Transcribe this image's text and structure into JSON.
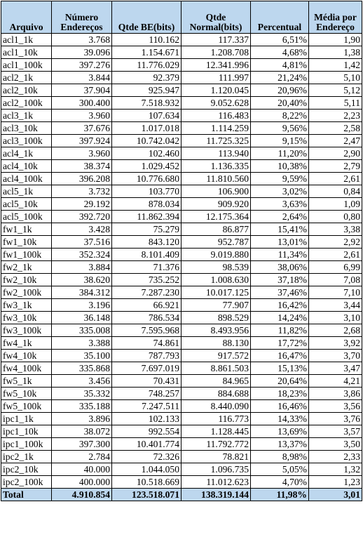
{
  "header": {
    "arquivo": "Arquivo",
    "numero_enderecos": "Número Endereços",
    "qtde_be": "Qtde BE(bits)",
    "qtde_normal": "Qtde Normal(bits)",
    "percentual": "Percentual",
    "media": "Média por Endereço"
  },
  "rows": [
    [
      "acl1_1k",
      "3.768",
      "110.162",
      "117.337",
      "6,51%",
      "1,90"
    ],
    [
      "acl1_10k",
      "39.096",
      "1.154.671",
      "1.208.708",
      "4,68%",
      "1,38"
    ],
    [
      "acl1_100k",
      "397.276",
      "11.776.029",
      "12.341.996",
      "4,81%",
      "1,42"
    ],
    [
      "acl2_1k",
      "3.844",
      "92.379",
      "111.997",
      "21,24%",
      "5,10"
    ],
    [
      "acl2_10k",
      "37.904",
      "925.947",
      "1.120.045",
      "20,96%",
      "5,12"
    ],
    [
      "acl2_100k",
      "300.400",
      "7.518.932",
      "9.052.628",
      "20,40%",
      "5,11"
    ],
    [
      "acl3_1k",
      "3.960",
      "107.634",
      "116.483",
      "8,22%",
      "2,23"
    ],
    [
      "acl3_10k",
      "37.676",
      "1.017.018",
      "1.114.259",
      "9,56%",
      "2,58"
    ],
    [
      "acl3_100k",
      "397.924",
      "10.742.042",
      "11.725.325",
      "9,15%",
      "2,47"
    ],
    [
      "acl4_1k",
      "3.960",
      "102.460",
      "113.940",
      "11,20%",
      "2,90"
    ],
    [
      "acl4_10k",
      "38.374",
      "1.029.452",
      "1.136.335",
      "10,38%",
      "2,79"
    ],
    [
      "acl4_100k",
      "396.208",
      "10.776.680",
      "11.810.560",
      "9,59%",
      "2,61"
    ],
    [
      "acl5_1k",
      "3.732",
      "103.770",
      "106.900",
      "3,02%",
      "0,84"
    ],
    [
      "acl5_10k",
      "29.192",
      "878.034",
      "909.920",
      "3,63%",
      "1,09"
    ],
    [
      "acl5_100k",
      "392.720",
      "11.862.394",
      "12.175.364",
      "2,64%",
      "0,80"
    ],
    [
      "fw1_1k",
      "3.428",
      "75.279",
      "86.877",
      "15,41%",
      "3,38"
    ],
    [
      "fw1_10k",
      "37.516",
      "843.120",
      "952.787",
      "13,01%",
      "2,92"
    ],
    [
      "fw1_100k",
      "352.324",
      "8.101.409",
      "9.019.880",
      "11,34%",
      "2,61"
    ],
    [
      "fw2_1k",
      "3.884",
      "71.376",
      "98.539",
      "38,06%",
      "6,99"
    ],
    [
      "fw2_10k",
      "38.620",
      "735.252",
      "1.008.630",
      "37,18%",
      "7,08"
    ],
    [
      "fw2_100k",
      "384.312",
      "7.287.230",
      "10.017.125",
      "37,46%",
      "7,10"
    ],
    [
      "fw3_1k",
      "3.196",
      "66.921",
      "77.907",
      "16,42%",
      "3,44"
    ],
    [
      "fw3_10k",
      "36.148",
      "786.534",
      "898.529",
      "14,24%",
      "3,10"
    ],
    [
      "fw3_100k",
      "335.008",
      "7.595.968",
      "8.493.956",
      "11,82%",
      "2,68"
    ],
    [
      "fw4_1k",
      "3.388",
      "74.861",
      "88.130",
      "17,72%",
      "3,92"
    ],
    [
      "fw4_10k",
      "35.100",
      "787.793",
      "917.572",
      "16,47%",
      "3,70"
    ],
    [
      "fw4_100k",
      "335.868",
      "7.697.019",
      "8.861.503",
      "15,13%",
      "3,47"
    ],
    [
      "fw5_1k",
      "3.456",
      "70.431",
      "84.965",
      "20,64%",
      "4,21"
    ],
    [
      "fw5_10k",
      "35.332",
      "748.257",
      "884.688",
      "18,23%",
      "3,86"
    ],
    [
      "fw5_100k",
      "335.188",
      "7.247.511",
      "8.440.090",
      "16,46%",
      "3,56"
    ],
    [
      "ipc1_1k",
      "3.896",
      "102.133",
      "116.773",
      "14,33%",
      "3,76"
    ],
    [
      "ipc1_10k",
      "38.072",
      "992.554",
      "1.128.445",
      "13,69%",
      "3,57"
    ],
    [
      "ipc1_100k",
      "397.300",
      "10.401.774",
      "11.792.772",
      "13,37%",
      "3,50"
    ],
    [
      "ipc2_1k",
      "2.784",
      "72.326",
      "78.821",
      "8,98%",
      "2,33"
    ],
    [
      "ipc2_10k",
      "40.000",
      "1.044.050",
      "1.096.735",
      "5,05%",
      "1,32"
    ],
    [
      "ipc2_100k",
      "400.000",
      "10.518.669",
      "11.012.623",
      "4,70%",
      "1,23"
    ]
  ],
  "total": [
    "Total",
    "4.910.854",
    "123.518.071",
    "138.319.144",
    "11,98%",
    "3,01"
  ],
  "colors": {
    "header_bg": "#bdd7ee",
    "total_bg": "#bdd7ee"
  }
}
